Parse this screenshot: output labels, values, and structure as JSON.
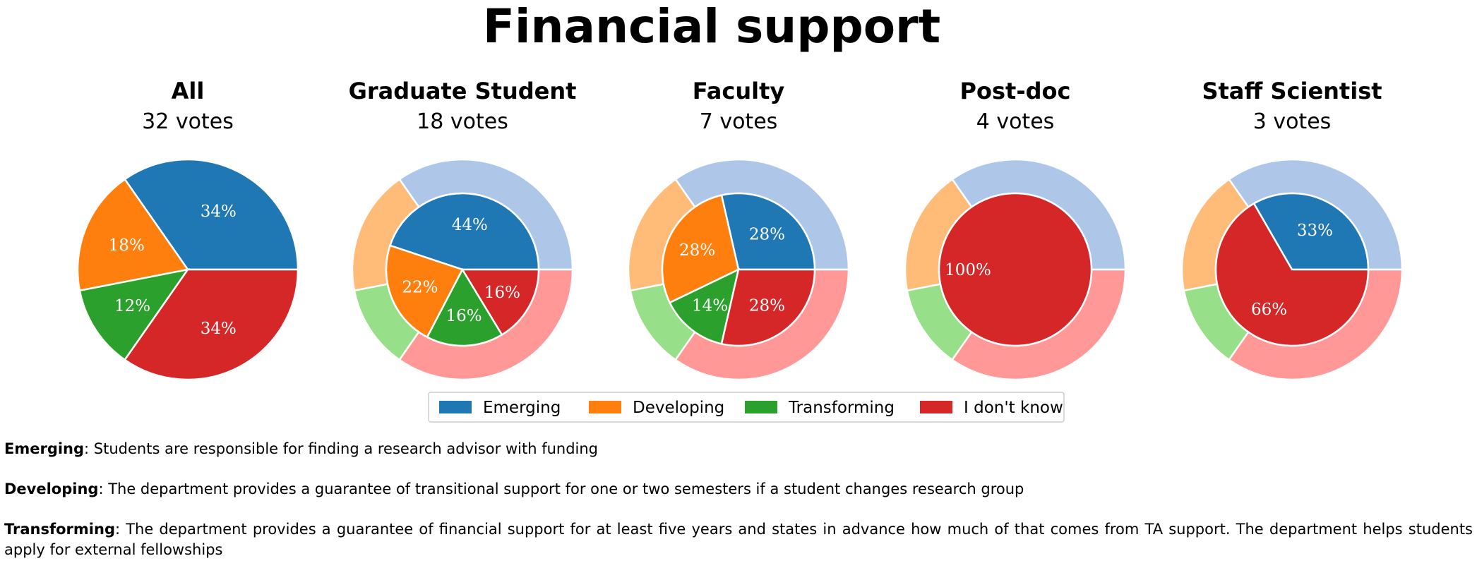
{
  "chart_data": {
    "type": "pie",
    "title": "Financial support",
    "categories": [
      "Emerging",
      "Developing",
      "Transforming",
      "I don't know"
    ],
    "colors": {
      "inner": [
        "#1f77b4",
        "#ff7f0e",
        "#2ca02c",
        "#d62728"
      ],
      "outer": [
        "#aec7e8",
        "#ffbb78",
        "#98df8a",
        "#ff9896"
      ]
    },
    "legend": {
      "position": "bottom-center",
      "entries": [
        "Emerging",
        "Developing",
        "Transforming",
        "I don't know"
      ]
    },
    "panels": [
      {
        "title": "All",
        "votes": "32 votes",
        "values": [
          34,
          18,
          12,
          34
        ],
        "show_outer_ring": false
      },
      {
        "title": "Graduate Student",
        "votes": "18 votes",
        "values": [
          44,
          22,
          16,
          16
        ],
        "show_outer_ring": true
      },
      {
        "title": "Faculty",
        "votes": "7 votes",
        "values": [
          28,
          28,
          14,
          28
        ],
        "show_outer_ring": true
      },
      {
        "title": "Post-doc",
        "votes": "4 votes",
        "values": [
          0,
          0,
          0,
          100
        ],
        "show_outer_ring": true
      },
      {
        "title": "Staff Scientist",
        "votes": "3 votes",
        "values": [
          33,
          0,
          0,
          66
        ],
        "show_outer_ring": true
      }
    ],
    "outer_reference_values": [
      34,
      18,
      12,
      34
    ]
  },
  "definitions": [
    {
      "term": "Emerging",
      "text": ": Students are responsible for finding a research advisor with funding"
    },
    {
      "term": "Developing",
      "text": ": The department provides a guarantee of transitional support for one or two semesters if a student changes research group"
    },
    {
      "term": "Transforming",
      "text": ": The department provides a guarantee of financial support for at least five years and states in advance how much of that comes from TA support. The department helps students apply for external fellowships"
    }
  ]
}
